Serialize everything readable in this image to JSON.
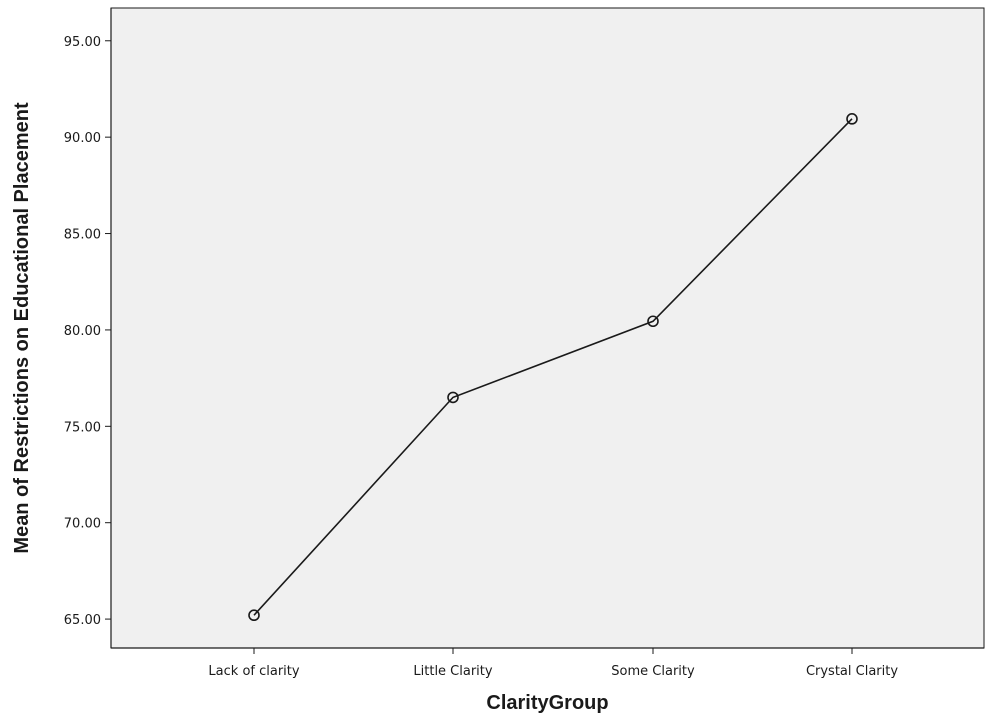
{
  "chart_data": {
    "type": "line",
    "title": "",
    "xlabel": "ClarityGroup",
    "ylabel": "Mean of Restrictions on Educational Placement",
    "categories": [
      "Lack of clarity",
      "Little Clarity",
      "Some Clarity",
      "Crystal Clarity"
    ],
    "series": [
      {
        "values": [
          65.2,
          76.5,
          80.45,
          90.95
        ]
      }
    ],
    "ylim": [
      63.5,
      96.7
    ],
    "yticks": [
      65.0,
      70.0,
      75.0,
      80.0,
      85.0,
      90.0,
      95.0
    ],
    "ytick_labels": [
      "65.00",
      "70.00",
      "75.00",
      "80.00",
      "85.00",
      "90.00",
      "95.00"
    ],
    "grid": false,
    "markers": "open-circle",
    "colors": {
      "plot_background": "#f0f0f0",
      "line": "#1a1a1a",
      "axis": "#1a1a1a"
    }
  }
}
